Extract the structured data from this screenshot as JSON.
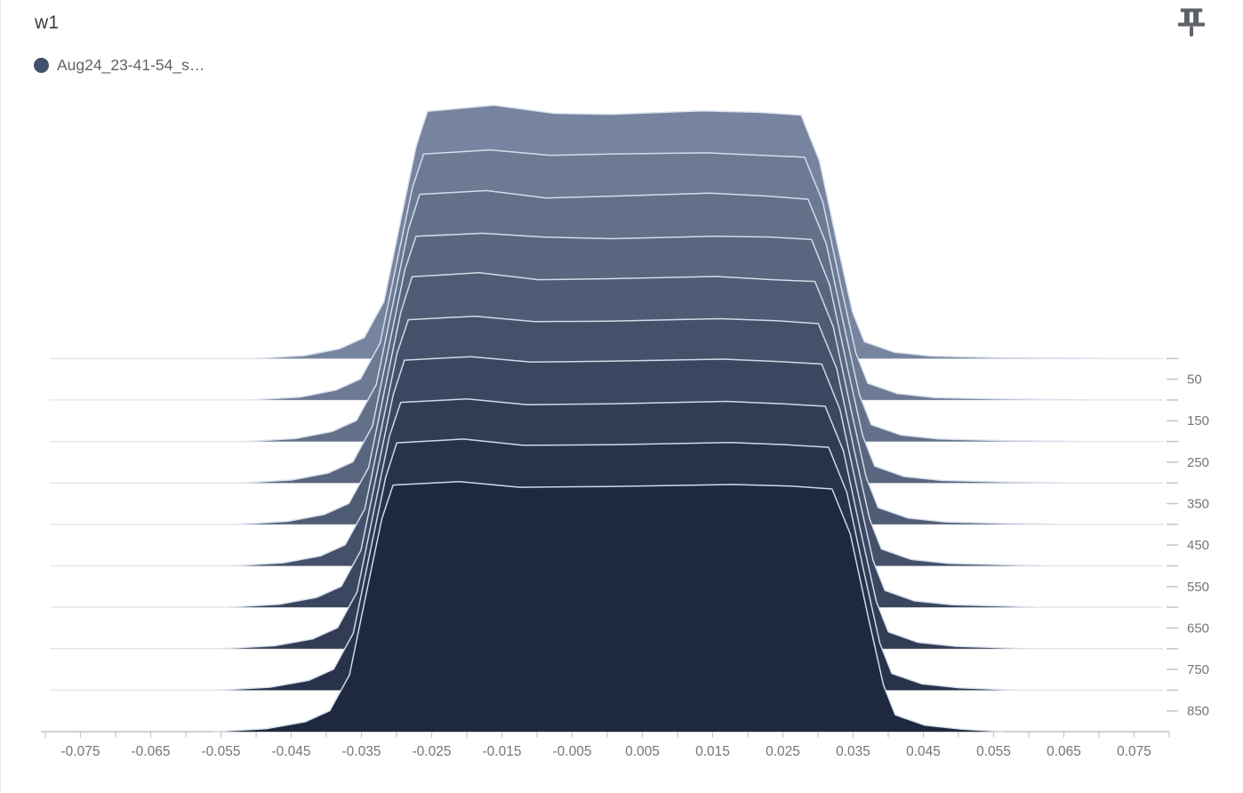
{
  "card": {
    "title": "w1",
    "legend": {
      "label": "Aug24_23-41-54_s…",
      "color": "#42506b"
    },
    "icons": {
      "pin": "push-pin-icon"
    }
  },
  "chart_data": {
    "type": "area",
    "variant": "ridgeline-histogram",
    "title": "w1",
    "legend": [
      "Aug24_23-41-54_s…"
    ],
    "x_axis": {
      "min": -0.08,
      "max": 0.08,
      "minor_tick_step": 0.005,
      "tick_labels": [
        "-0.075",
        "-0.065",
        "-0.055",
        "-0.045",
        "-0.035",
        "-0.025",
        "-0.015",
        "-0.005",
        "0.005",
        "0.015",
        "0.025",
        "0.035",
        "0.045",
        "0.055",
        "0.065",
        "0.075"
      ]
    },
    "y_axis": {
      "unit": "step",
      "ticks": [
        50,
        150,
        250,
        350,
        450,
        550,
        650,
        750,
        850
      ],
      "grid_on": true
    },
    "style": {
      "fill_back": "#76849f",
      "fill_front": "#1e2940",
      "outline": "#d9e2ee",
      "grid": "#e4e4e4",
      "axis": "#c2c2c2",
      "tick_color": "#c4c4c4",
      "label_color": "#757575"
    },
    "series": [
      {
        "step": 0,
        "points": [
          [
            -0.05,
            0
          ],
          [
            -0.04307,
            0.012
          ],
          [
            -0.0381,
            0.04
          ],
          [
            -0.0346,
            0.085
          ],
          [
            -0.0318,
            0.23
          ],
          [
            -0.0294,
            0.56
          ],
          [
            -0.0272,
            0.86
          ],
          [
            -0.0256,
            1.0
          ],
          [
            -0.0161,
            1.025
          ],
          [
            -0.0076,
            0.992
          ],
          [
            0.0005,
            0.988
          ],
          [
            0.0136,
            1.002
          ],
          [
            0.0216,
            0.996
          ],
          [
            0.0276,
            0.985
          ],
          [
            0.0302,
            0.8
          ],
          [
            0.0327,
            0.47
          ],
          [
            0.0349,
            0.19
          ],
          [
            0.0366,
            0.068
          ],
          [
            0.0408,
            0.026
          ],
          [
            0.046,
            0.01
          ],
          [
            0.055,
            0.004
          ],
          [
            0.07,
            0
          ]
        ]
      },
      {
        "step": 100,
        "points": [
          [
            -0.05067,
            0
          ],
          [
            -0.04368,
            0.012
          ],
          [
            -0.03864,
            0.04
          ],
          [
            -0.03514,
            0.085
          ],
          [
            -0.03234,
            0.23
          ],
          [
            -0.02994,
            0.56
          ],
          [
            -0.02774,
            0.86
          ],
          [
            -0.02614,
            0.995
          ],
          [
            -0.01664,
            1.012
          ],
          [
            -0.00814,
            0.99
          ],
          [
            0.0005,
            0.995
          ],
          [
            0.01409,
            1.0
          ],
          [
            0.02209,
            0.99
          ],
          [
            0.02809,
            0.982
          ],
          [
            0.03069,
            0.8
          ],
          [
            0.03319,
            0.47
          ],
          [
            0.03539,
            0.19
          ],
          [
            0.03709,
            0.068
          ],
          [
            0.04129,
            0.026
          ],
          [
            0.0466,
            0.01
          ],
          [
            0.0554,
            0.004
          ],
          [
            0.0685,
            0
          ]
        ]
      },
      {
        "step": 200,
        "points": [
          [
            -0.05133,
            0
          ],
          [
            -0.04429,
            0.012
          ],
          [
            -0.03919,
            0.04
          ],
          [
            -0.03569,
            0.085
          ],
          [
            -0.03289,
            0.23
          ],
          [
            -0.03049,
            0.56
          ],
          [
            -0.02829,
            0.86
          ],
          [
            -0.02669,
            1.0
          ],
          [
            -0.01719,
            1.015
          ],
          [
            -0.00869,
            0.985
          ],
          [
            0.0005,
            0.992
          ],
          [
            0.01458,
            1.005
          ],
          [
            0.02258,
            0.993
          ],
          [
            0.02858,
            0.98
          ],
          [
            0.03118,
            0.8
          ],
          [
            0.03368,
            0.47
          ],
          [
            0.03588,
            0.19
          ],
          [
            0.03758,
            0.068
          ],
          [
            0.04178,
            0.026
          ],
          [
            0.0471,
            0.01
          ],
          [
            0.0558,
            0.004
          ],
          [
            0.067,
            0
          ]
        ]
      },
      {
        "step": 300,
        "points": [
          [
            -0.052,
            0
          ],
          [
            -0.0449,
            0.012
          ],
          [
            -0.03973,
            0.04
          ],
          [
            -0.03623,
            0.085
          ],
          [
            -0.03343,
            0.23
          ],
          [
            -0.03103,
            0.56
          ],
          [
            -0.02883,
            0.86
          ],
          [
            -0.02723,
            0.998
          ],
          [
            -0.01773,
            1.01
          ],
          [
            -0.00923,
            0.995
          ],
          [
            0.0005,
            0.988
          ],
          [
            0.01507,
            0.998
          ],
          [
            0.02307,
            0.995
          ],
          [
            0.02907,
            0.985
          ],
          [
            0.03167,
            0.8
          ],
          [
            0.03417,
            0.47
          ],
          [
            0.03637,
            0.19
          ],
          [
            0.03807,
            0.068
          ],
          [
            0.04227,
            0.026
          ],
          [
            0.0476,
            0.01
          ],
          [
            0.0562,
            0.004
          ],
          [
            0.0655,
            0
          ]
        ]
      },
      {
        "step": 400,
        "points": [
          [
            -0.05267,
            0
          ],
          [
            -0.04552,
            0.012
          ],
          [
            -0.04028,
            0.04
          ],
          [
            -0.03678,
            0.085
          ],
          [
            -0.03398,
            0.23
          ],
          [
            -0.03158,
            0.56
          ],
          [
            -0.02938,
            0.86
          ],
          [
            -0.02778,
            1.002
          ],
          [
            -0.01828,
            1.018
          ],
          [
            -0.00978,
            0.99
          ],
          [
            0.0005,
            0.994
          ],
          [
            0.01556,
            1.003
          ],
          [
            0.02356,
            0.99
          ],
          [
            0.02956,
            0.983
          ],
          [
            0.03216,
            0.8
          ],
          [
            0.03466,
            0.47
          ],
          [
            0.03686,
            0.19
          ],
          [
            0.03856,
            0.068
          ],
          [
            0.04276,
            0.026
          ],
          [
            0.0481,
            0.01
          ],
          [
            0.0566,
            0.004
          ],
          [
            0.064,
            0
          ]
        ]
      },
      {
        "step": 500,
        "points": [
          [
            -0.05333,
            0
          ],
          [
            -0.04613,
            0.012
          ],
          [
            -0.04082,
            0.04
          ],
          [
            -0.03732,
            0.085
          ],
          [
            -0.03452,
            0.23
          ],
          [
            -0.03212,
            0.56
          ],
          [
            -0.02992,
            0.86
          ],
          [
            -0.02832,
            0.996
          ],
          [
            -0.01882,
            1.01
          ],
          [
            -0.01032,
            0.988
          ],
          [
            0.0005,
            0.99
          ],
          [
            0.01604,
            1.0
          ],
          [
            0.02404,
            0.992
          ],
          [
            0.03004,
            0.98
          ],
          [
            0.03264,
            0.8
          ],
          [
            0.03514,
            0.47
          ],
          [
            0.03734,
            0.19
          ],
          [
            0.03904,
            0.068
          ],
          [
            0.04324,
            0.026
          ],
          [
            0.0486,
            0.01
          ],
          [
            0.057,
            0.004
          ],
          [
            0.0625,
            0
          ]
        ]
      },
      {
        "step": 600,
        "points": [
          [
            -0.054,
            0
          ],
          [
            -0.04674,
            0.012
          ],
          [
            -0.04137,
            0.04
          ],
          [
            -0.03787,
            0.085
          ],
          [
            -0.03507,
            0.23
          ],
          [
            -0.03267,
            0.56
          ],
          [
            -0.03047,
            0.86
          ],
          [
            -0.02887,
            1.0
          ],
          [
            -0.01937,
            1.014
          ],
          [
            -0.01087,
            0.992
          ],
          [
            0.0005,
            0.996
          ],
          [
            0.01653,
            1.004
          ],
          [
            0.02453,
            0.994
          ],
          [
            0.03053,
            0.984
          ],
          [
            0.03313,
            0.8
          ],
          [
            0.03563,
            0.47
          ],
          [
            0.03783,
            0.19
          ],
          [
            0.03953,
            0.068
          ],
          [
            0.04373,
            0.026
          ],
          [
            0.0491,
            0.01
          ],
          [
            0.0574,
            0.004
          ],
          [
            0.061,
            0
          ]
        ]
      },
      {
        "step": 700,
        "points": [
          [
            -0.05467,
            0
          ],
          [
            -0.04735,
            0.012
          ],
          [
            -0.04191,
            0.04
          ],
          [
            -0.03841,
            0.085
          ],
          [
            -0.03561,
            0.23
          ],
          [
            -0.03321,
            0.56
          ],
          [
            -0.03101,
            0.86
          ],
          [
            -0.02941,
            0.997
          ],
          [
            -0.01991,
            1.011
          ],
          [
            -0.01141,
            0.987
          ],
          [
            0.0005,
            0.991
          ],
          [
            0.01702,
            1.001
          ],
          [
            0.02502,
            0.991
          ],
          [
            0.03102,
            0.981
          ],
          [
            0.03362,
            0.8
          ],
          [
            0.03612,
            0.47
          ],
          [
            0.03832,
            0.19
          ],
          [
            0.04002,
            0.068
          ],
          [
            0.04422,
            0.026
          ],
          [
            0.0496,
            0.01
          ],
          [
            0.056,
            0.004
          ],
          [
            0.0595,
            0
          ]
        ]
      },
      {
        "step": 800,
        "points": [
          [
            -0.05533,
            0
          ],
          [
            -0.04796,
            0.012
          ],
          [
            -0.04246,
            0.04
          ],
          [
            -0.03896,
            0.085
          ],
          [
            -0.03616,
            0.23
          ],
          [
            -0.03376,
            0.56
          ],
          [
            -0.03156,
            0.86
          ],
          [
            -0.02996,
            1.001
          ],
          [
            -0.02046,
            1.016
          ],
          [
            -0.01196,
            0.991
          ],
          [
            0.0005,
            0.993
          ],
          [
            0.01751,
            1.002
          ],
          [
            0.02551,
            0.993
          ],
          [
            0.03151,
            0.983
          ],
          [
            0.03411,
            0.8
          ],
          [
            0.03661,
            0.47
          ],
          [
            0.03881,
            0.19
          ],
          [
            0.04051,
            0.068
          ],
          [
            0.04471,
            0.026
          ],
          [
            0.05,
            0.01
          ],
          [
            0.055,
            0.004
          ],
          [
            0.058,
            0
          ]
        ]
      },
      {
        "step": 900,
        "points": [
          [
            -0.056,
            0
          ],
          [
            -0.04858,
            0.012
          ],
          [
            -0.043,
            0.04
          ],
          [
            -0.0395,
            0.085
          ],
          [
            -0.0367,
            0.23
          ],
          [
            -0.0343,
            0.56
          ],
          [
            -0.0321,
            0.86
          ],
          [
            -0.0305,
            0.998
          ],
          [
            -0.021,
            1.012
          ],
          [
            -0.0125,
            0.989
          ],
          [
            0.0005,
            0.992
          ],
          [
            0.018,
            1.0
          ],
          [
            0.026,
            0.994
          ],
          [
            0.032,
            0.982
          ],
          [
            0.0346,
            0.8
          ],
          [
            0.0371,
            0.47
          ],
          [
            0.0393,
            0.19
          ],
          [
            0.041,
            0.068
          ],
          [
            0.0452,
            0.026
          ],
          [
            0.0505,
            0.01
          ],
          [
            0.054,
            0.004
          ],
          [
            0.0565,
            0
          ]
        ]
      }
    ]
  }
}
